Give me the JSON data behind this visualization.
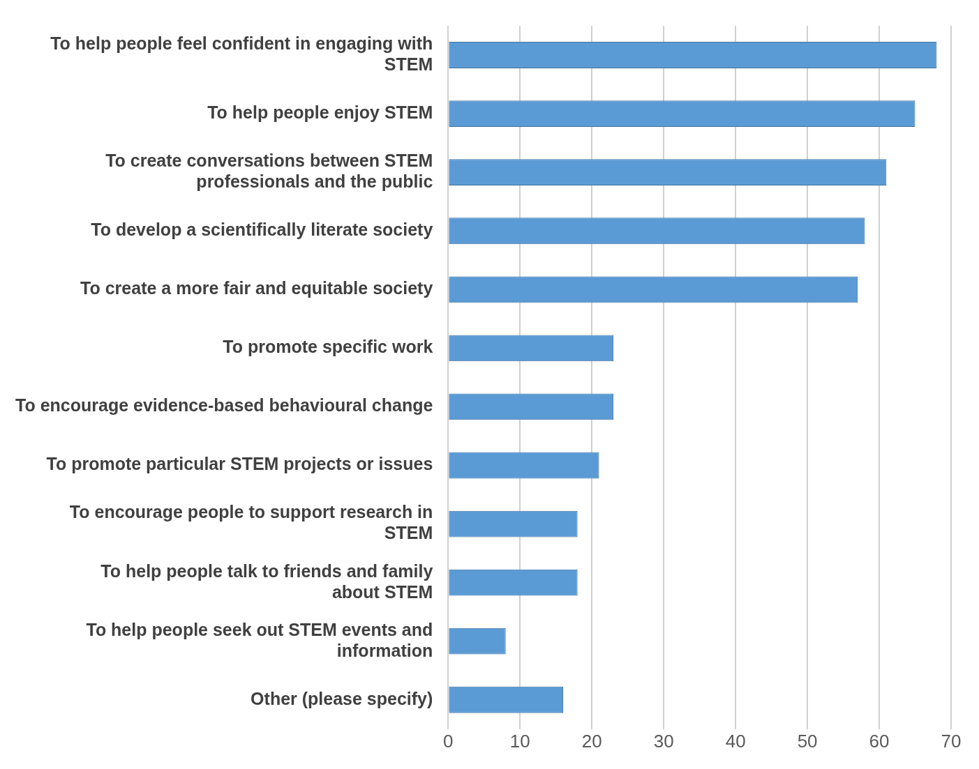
{
  "chart_data": {
    "type": "bar",
    "orientation": "horizontal",
    "categories": [
      "To help people feel confident in engaging with STEM",
      "To help people enjoy STEM",
      "To create conversations between STEM professionals and the public",
      "To develop a scientifically literate society",
      "To create a more fair and equitable society",
      "To promote specific work",
      "To encourage evidence-based behavioural change",
      "To promote particular STEM projects or issues",
      "To encourage people to support research in STEM",
      "To help people talk to friends and family about STEM",
      "To help people seek out STEM events and information",
      "Other (please specify)"
    ],
    "values": [
      68,
      65,
      61,
      58,
      57,
      23,
      23,
      21,
      18,
      18,
      8,
      16
    ],
    "color": "#5b9bd5",
    "xlim": [
      0,
      70
    ],
    "xticks": [
      0,
      10,
      20,
      30,
      40,
      50,
      60,
      70
    ],
    "grid": "x",
    "legend": false
  }
}
